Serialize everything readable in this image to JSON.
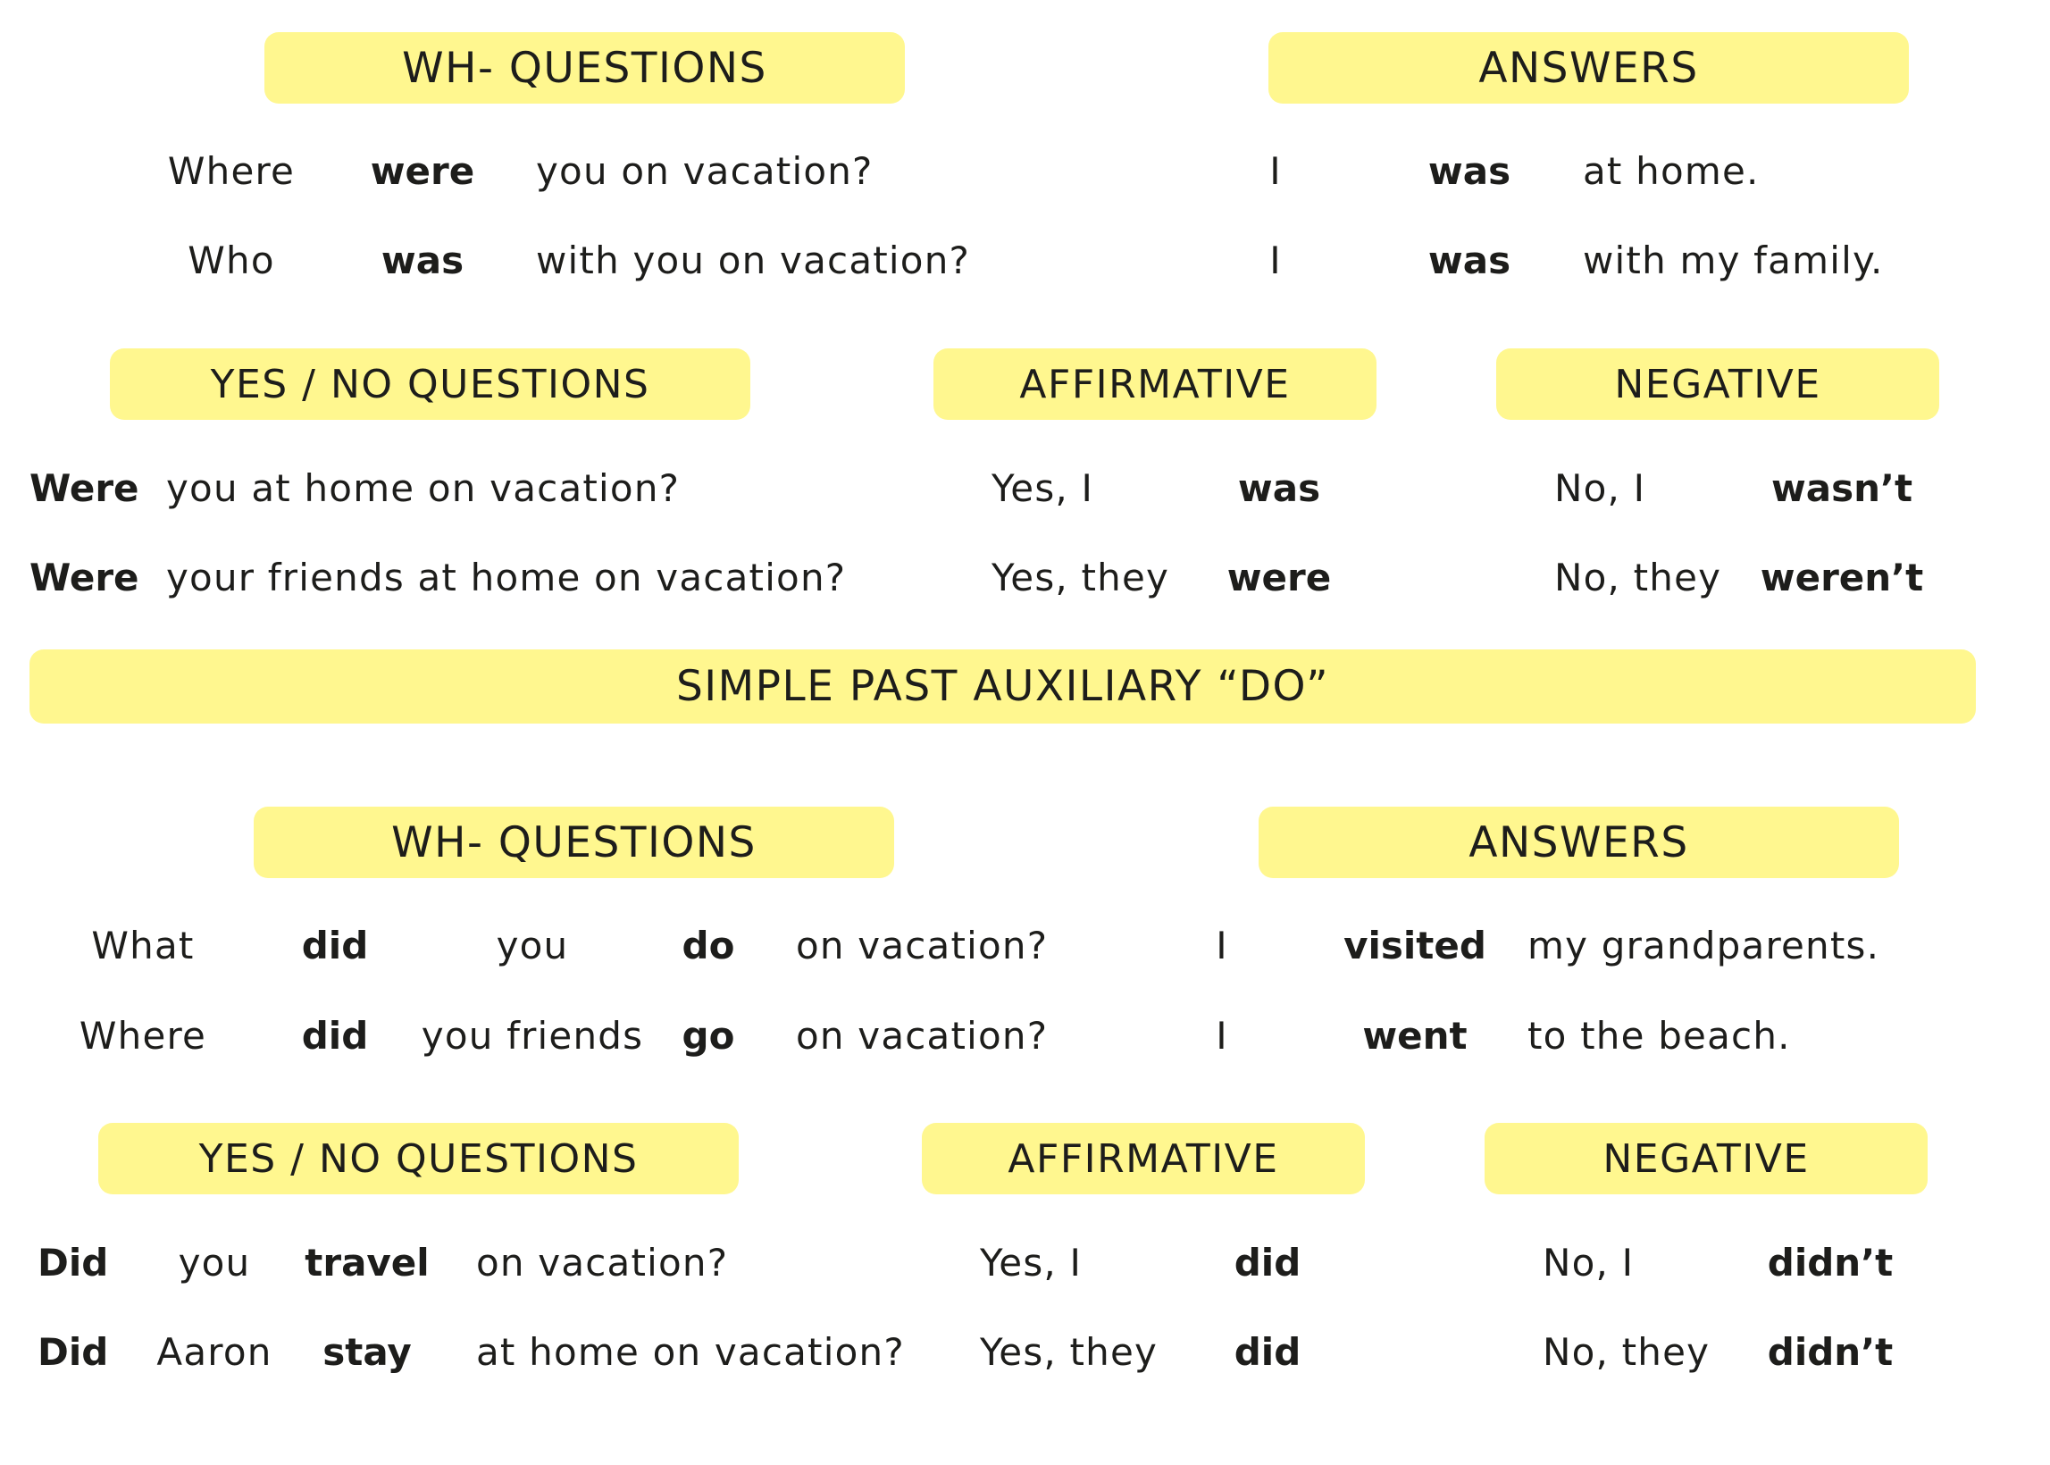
{
  "be": {
    "wh_header": "WH- QUESTIONS",
    "answers_header": "ANSWERS",
    "wh_rows": [
      {
        "wh": "Where",
        "verb": "were",
        "rest": "you on vacation?",
        "subject": "I",
        "answer_verb": "was",
        "answer_rest": "at home."
      },
      {
        "wh": "Who",
        "verb": "was",
        "rest": "with you on vacation?",
        "subject": "I",
        "answer_verb": "was",
        "answer_rest": "with my family."
      }
    ],
    "yn_header": "YES / NO QUESTIONS",
    "affirmative_header": "AFFIRMATIVE",
    "negative_header": "NEGATIVE",
    "yn_rows": [
      {
        "aux": "Were",
        "rest": "you at home on vacation?",
        "yes": "Yes, I",
        "yes_verb": "was",
        "no": "No, I",
        "no_verb": "wasn’t"
      },
      {
        "aux": "Were",
        "rest": "your friends at home on vacation?",
        "yes": "Yes, they",
        "yes_verb": "were",
        "no": "No, they",
        "no_verb": "weren’t"
      }
    ]
  },
  "section_title": "SIMPLE PAST AUXILIARY “DO”",
  "do": {
    "wh_header": "WH- QUESTIONS",
    "answers_header": "ANSWERS",
    "wh_rows": [
      {
        "wh": "What",
        "aux": "did",
        "subject": "you",
        "verb": "do",
        "rest": "on vacation?",
        "answer_subject": "I",
        "answer_verb": "visited",
        "answer_rest": "my grandparents."
      },
      {
        "wh": "Where",
        "aux": "did",
        "subject": "you friends",
        "verb": "go",
        "rest": "on vacation?",
        "answer_subject": "I",
        "answer_verb": "went",
        "answer_rest": "to the beach."
      }
    ],
    "yn_header": "YES / NO QUESTIONS",
    "affirmative_header": "AFFIRMATIVE",
    "negative_header": "NEGATIVE",
    "yn_rows": [
      {
        "aux": "Did",
        "subject": "you",
        "verb": "travel",
        "rest": "on vacation?",
        "yes": "Yes, I",
        "yes_verb": "did",
        "no": "No, I",
        "no_verb": "didn’t"
      },
      {
        "aux": "Did",
        "subject": "Aaron",
        "verb": "stay",
        "rest": "at home on vacation?",
        "yes": "Yes, they",
        "yes_verb": "did",
        "no": "No, they",
        "no_verb": "didn’t"
      }
    ]
  },
  "colors": {
    "header_fill": "#fff78f",
    "text": "#1d1d1b"
  }
}
